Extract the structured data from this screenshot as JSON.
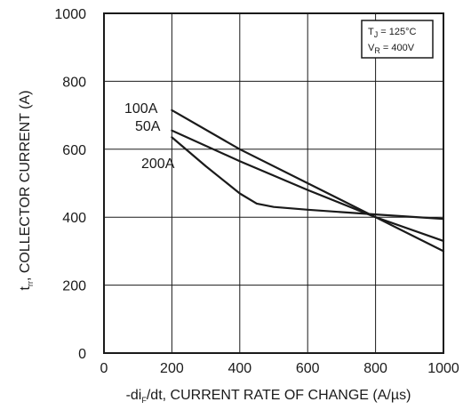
{
  "chart_data": {
    "type": "line",
    "xlabel": {
      "prefix": "-di",
      "sub": "F",
      "suffix": "/dt, CURRENT RATE OF CHANGE (A/µs)"
    },
    "ylabel": {
      "prefix": "t",
      "sub": "rr",
      "suffix": ", COLLECTOR CURRENT (A)"
    },
    "xlim": [
      0,
      1000
    ],
    "ylim": [
      0,
      1000
    ],
    "xticks": [
      0,
      200,
      400,
      600,
      800,
      1000
    ],
    "yticks": [
      0,
      200,
      400,
      600,
      800,
      1000
    ],
    "grid": true,
    "conditions": [
      {
        "sym": "T",
        "sub": "J",
        "value": " = 125°C"
      },
      {
        "sym": "V",
        "sub": "R",
        "value": " = 400V"
      }
    ],
    "series": [
      {
        "name": "100A",
        "x": [
          200,
          400,
          600,
          800,
          1000
        ],
        "y": [
          715,
          600,
          500,
          400,
          300
        ]
      },
      {
        "name": "50A",
        "x": [
          200,
          400,
          600,
          800,
          1000
        ],
        "y": [
          655,
          565,
          480,
          400,
          330
        ]
      },
      {
        "name": "200A",
        "x": [
          200,
          300,
          400,
          450,
          500,
          600,
          700,
          800,
          1000
        ],
        "y": [
          635,
          550,
          470,
          440,
          430,
          422,
          415,
          408,
          395
        ]
      }
    ]
  },
  "colors": {
    "line": "#1a1a1a",
    "grid": "#1a1a1a",
    "background": "#ffffff"
  }
}
